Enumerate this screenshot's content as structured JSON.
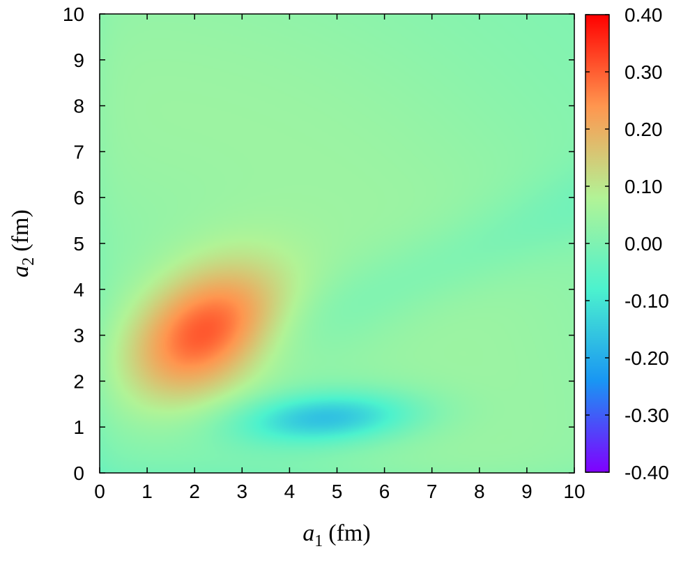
{
  "chart_data": {
    "type": "heatmap",
    "title": "",
    "xlabel": {
      "symbol": "a",
      "sub": "1",
      "unit": "(fm)"
    },
    "ylabel": {
      "symbol": "a",
      "sub": "2",
      "unit": "(fm)"
    },
    "xlim": [
      0,
      10
    ],
    "ylim": [
      0,
      10
    ],
    "xticks": [
      0,
      1,
      2,
      3,
      4,
      5,
      6,
      7,
      8,
      9,
      10
    ],
    "yticks": [
      0,
      1,
      2,
      3,
      4,
      5,
      6,
      7,
      8,
      9,
      10
    ],
    "xtick_labels": [
      "0",
      "1",
      "2",
      "3",
      "4",
      "5",
      "6",
      "7",
      "8",
      "9",
      "10"
    ],
    "ytick_labels": [
      "0",
      "1",
      "2",
      "3",
      "4",
      "5",
      "6",
      "7",
      "8",
      "9",
      "10"
    ],
    "colorbar": {
      "range": [
        -0.4,
        0.4
      ],
      "ticks": [
        0.4,
        0.3,
        0.2,
        0.1,
        0.0,
        -0.1,
        -0.2,
        -0.3,
        -0.4
      ],
      "tick_labels": [
        "0.40",
        "0.30",
        "0.20",
        "0.10",
        "0.00",
        "-0.10",
        "-0.20",
        "-0.30",
        "-0.40"
      ],
      "colormap": "rainbow",
      "colors": [
        "#8000ff",
        "#1996f3",
        "#4cf2ce",
        "#b2f396",
        "#ff964f",
        "#ff0000"
      ]
    },
    "features": [
      {
        "kind": "maximum",
        "a1": 2.2,
        "a2": 3.0,
        "value": 0.33
      },
      {
        "kind": "minimum",
        "a1": 4.8,
        "a2": 1.2,
        "value": -0.19
      }
    ],
    "grid": false,
    "legend": "none"
  }
}
